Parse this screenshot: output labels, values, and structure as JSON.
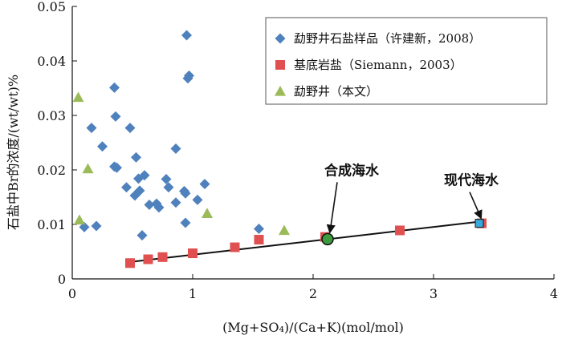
{
  "chart_data": {
    "type": "scatter",
    "title": "",
    "xlabel": "(Mg+SO₄)/(Ca+K)(mol/mol)",
    "ylabel": "石盐中Br的浓度/(wt/wt)%",
    "xlim": [
      0,
      4
    ],
    "ylim": [
      0,
      0.05
    ],
    "x_ticks": [
      "0",
      "1",
      "2",
      "3",
      "4"
    ],
    "y_ticks": [
      "0",
      "0.01",
      "0.02",
      "0.03",
      "0.04",
      "0.05"
    ],
    "legend_position": "top-right",
    "series": [
      {
        "name": "勐野井石盐样品（许建新，2008）",
        "marker": "diamond",
        "color": "#4f81bd",
        "points": [
          [
            0.2,
            0.0097
          ],
          [
            0.1,
            0.0095
          ],
          [
            0.16,
            0.0277
          ],
          [
            0.25,
            0.0243
          ],
          [
            0.35,
            0.0351
          ],
          [
            0.36,
            0.0298
          ],
          [
            0.35,
            0.0206
          ],
          [
            0.37,
            0.0204
          ],
          [
            0.45,
            0.0168
          ],
          [
            0.48,
            0.0277
          ],
          [
            0.52,
            0.0153
          ],
          [
            0.53,
            0.0223
          ],
          [
            0.55,
            0.0184
          ],
          [
            0.56,
            0.0162
          ],
          [
            0.58,
            0.008
          ],
          [
            0.6,
            0.019
          ],
          [
            0.64,
            0.0136
          ],
          [
            0.7,
            0.0138
          ],
          [
            0.72,
            0.0131
          ],
          [
            0.78,
            0.0183
          ],
          [
            0.8,
            0.0168
          ],
          [
            0.86,
            0.0239
          ],
          [
            0.86,
            0.014
          ],
          [
            0.93,
            0.0161
          ],
          [
            0.94,
            0.0157
          ],
          [
            0.94,
            0.0103
          ],
          [
            0.95,
            0.0447
          ],
          [
            0.96,
            0.0368
          ],
          [
            0.97,
            0.0373
          ],
          [
            1.04,
            0.0145
          ],
          [
            1.1,
            0.0174
          ],
          [
            1.55,
            0.0092
          ]
        ]
      },
      {
        "name": "基底岩盐（Siemann，2003）",
        "marker": "square",
        "color": "#e05050",
        "points": [
          [
            0.48,
            0.0029
          ],
          [
            0.63,
            0.0036
          ],
          [
            0.75,
            0.004
          ],
          [
            1.0,
            0.0047
          ],
          [
            1.35,
            0.0058
          ],
          [
            1.55,
            0.0072
          ],
          [
            2.1,
            0.0077
          ],
          [
            2.72,
            0.0089
          ],
          [
            3.4,
            0.0102
          ]
        ]
      },
      {
        "name": "勐野井（本文）",
        "marker": "triangle",
        "color": "#9bbb59",
        "points": [
          [
            0.05,
            0.0333
          ],
          [
            0.13,
            0.0202
          ],
          [
            0.06,
            0.0108
          ],
          [
            1.12,
            0.012
          ],
          [
            1.76,
            0.0089
          ]
        ]
      }
    ],
    "trend_line": {
      "from": [
        0.48,
        0.0031
      ],
      "to": [
        3.38,
        0.0105
      ]
    },
    "annotations": [
      {
        "text": "合成海水",
        "point": [
          2.12,
          0.0073
        ],
        "marker": "circle",
        "color": "#3e9a3e"
      },
      {
        "text": "现代海水",
        "point": [
          3.38,
          0.0102
        ],
        "marker": "square",
        "color": "#3aa8dc"
      }
    ]
  }
}
